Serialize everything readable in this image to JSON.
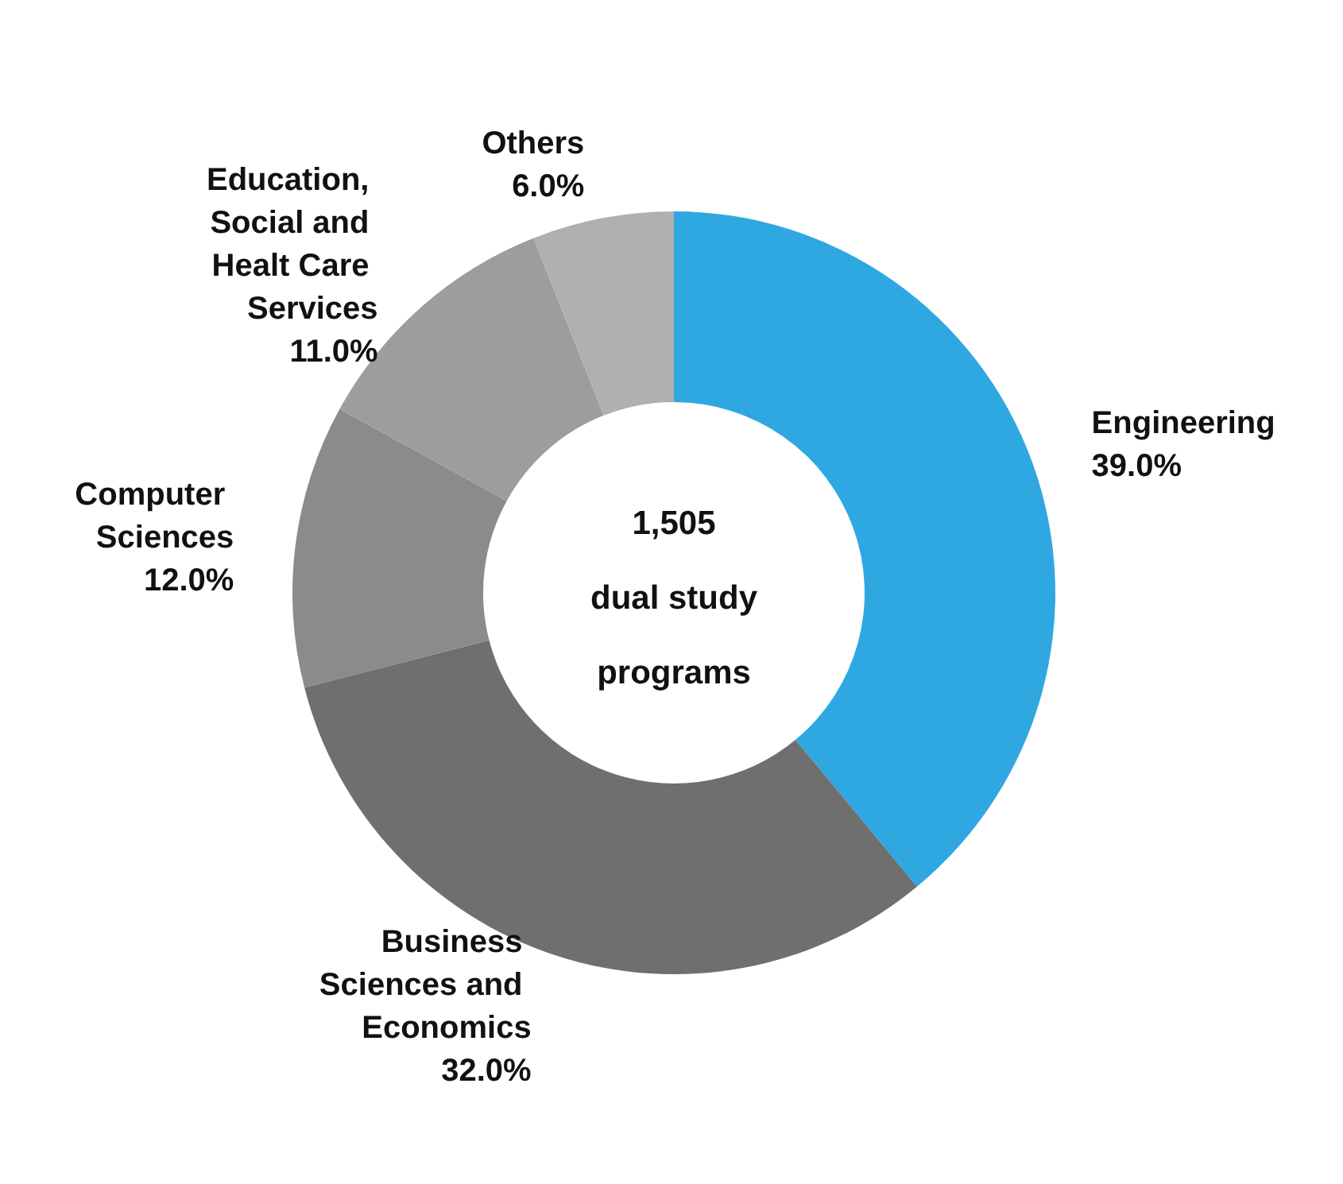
{
  "chart_data": {
    "type": "donut",
    "categories": [
      "Engineering",
      "Business Sciences and Economics",
      "Computer Sciences",
      "Education, Social and Healt Care Services",
      "Others"
    ],
    "values": [
      39,
      32,
      12,
      11,
      6
    ],
    "value_labels": [
      "39.0%",
      "32.0%",
      "12.0%",
      "11.0%",
      "6.0%"
    ],
    "colors": [
      "#2fa8e2",
      "#6f6f6f",
      "#8b8b8b",
      "#9d9d9d",
      "#b0b0b0"
    ],
    "annotations": [
      "1,505\ndual study\nprograms"
    ],
    "legend": false
  }
}
